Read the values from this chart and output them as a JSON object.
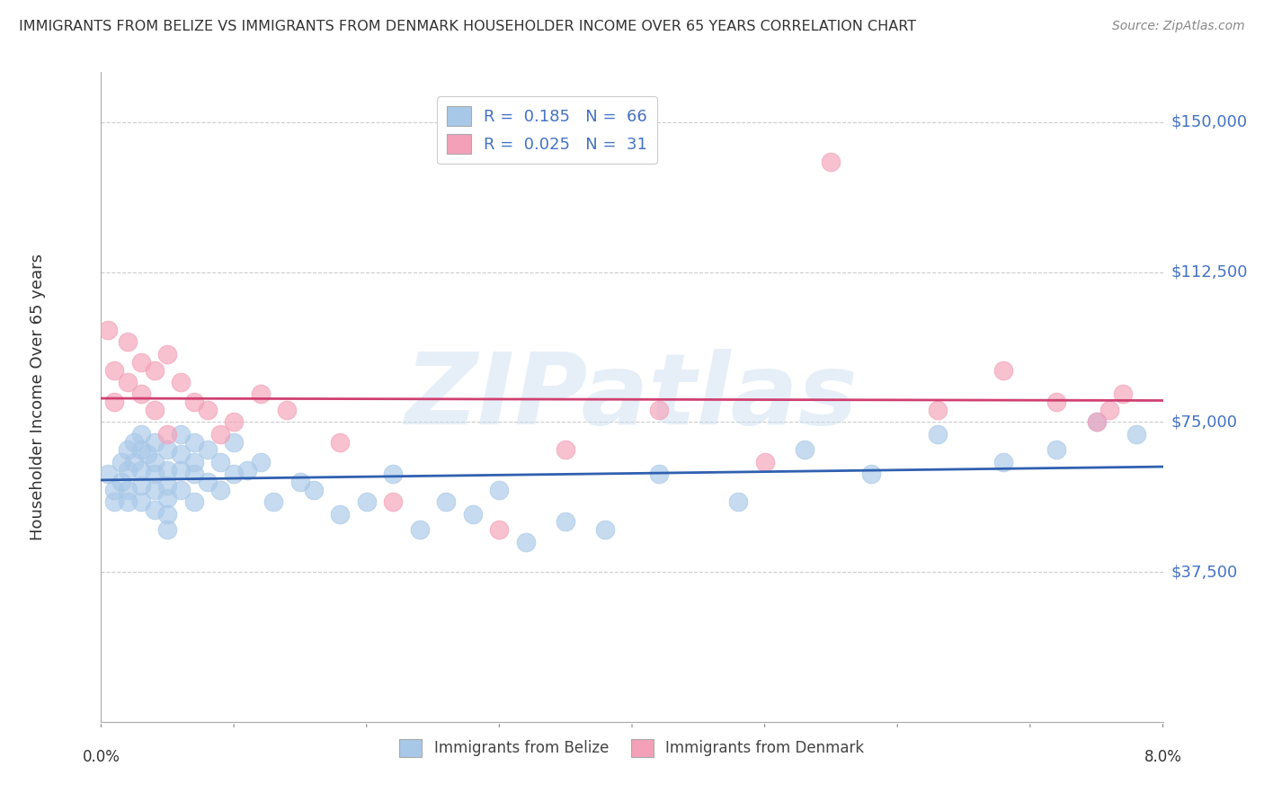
{
  "title": "IMMIGRANTS FROM BELIZE VS IMMIGRANTS FROM DENMARK HOUSEHOLDER INCOME OVER 65 YEARS CORRELATION CHART",
  "source": "Source: ZipAtlas.com",
  "ylabel": "Householder Income Over 65 years",
  "watermark": "ZIPatlas",
  "xlim": [
    0.0,
    0.08
  ],
  "ylim": [
    0,
    162500
  ],
  "yticks": [
    0,
    37500,
    75000,
    112500,
    150000
  ],
  "ytick_labels": [
    "",
    "$37,500",
    "$75,000",
    "$112,500",
    "$150,000"
  ],
  "xtick_positions": [
    0.0,
    0.01,
    0.02,
    0.03,
    0.04,
    0.05,
    0.06,
    0.07,
    0.08
  ],
  "belize_R": 0.185,
  "belize_N": 66,
  "denmark_R": 0.025,
  "denmark_N": 31,
  "belize_color": "#a8c8e8",
  "denmark_color": "#f4a0b8",
  "belize_line_color": "#3060b0",
  "denmark_line_color": "#d04070",
  "background_color": "#ffffff",
  "grid_color": "#cccccc",
  "title_color": "#333333",
  "axis_color": "#4472c4",
  "belize_x": [
    0.0005,
    0.001,
    0.001,
    0.0015,
    0.0015,
    0.002,
    0.002,
    0.002,
    0.002,
    0.0025,
    0.0025,
    0.003,
    0.003,
    0.003,
    0.003,
    0.003,
    0.0035,
    0.004,
    0.004,
    0.004,
    0.004,
    0.004,
    0.005,
    0.005,
    0.005,
    0.005,
    0.005,
    0.005,
    0.006,
    0.006,
    0.006,
    0.006,
    0.007,
    0.007,
    0.007,
    0.007,
    0.008,
    0.008,
    0.009,
    0.009,
    0.01,
    0.01,
    0.011,
    0.012,
    0.013,
    0.015,
    0.016,
    0.018,
    0.02,
    0.022,
    0.024,
    0.026,
    0.028,
    0.03,
    0.032,
    0.035,
    0.038,
    0.042,
    0.048,
    0.053,
    0.058,
    0.063,
    0.068,
    0.072,
    0.075,
    0.078
  ],
  "belize_y": [
    62000,
    55000,
    58000,
    65000,
    60000,
    68000,
    63000,
    58000,
    55000,
    70000,
    65000,
    72000,
    68000,
    63000,
    59000,
    55000,
    67000,
    70000,
    65000,
    62000,
    58000,
    53000,
    68000,
    63000,
    59000,
    56000,
    52000,
    48000,
    72000,
    67000,
    63000,
    58000,
    70000,
    65000,
    62000,
    55000,
    68000,
    60000,
    65000,
    58000,
    70000,
    62000,
    63000,
    65000,
    55000,
    60000,
    58000,
    52000,
    55000,
    62000,
    48000,
    55000,
    52000,
    58000,
    45000,
    50000,
    48000,
    62000,
    55000,
    68000,
    62000,
    72000,
    65000,
    68000,
    75000,
    72000
  ],
  "denmark_x": [
    0.0005,
    0.001,
    0.001,
    0.002,
    0.002,
    0.003,
    0.003,
    0.004,
    0.004,
    0.005,
    0.005,
    0.006,
    0.007,
    0.008,
    0.009,
    0.01,
    0.012,
    0.014,
    0.018,
    0.022,
    0.03,
    0.035,
    0.042,
    0.05,
    0.055,
    0.063,
    0.068,
    0.072,
    0.075,
    0.076,
    0.077
  ],
  "denmark_y": [
    98000,
    88000,
    80000,
    95000,
    85000,
    90000,
    82000,
    88000,
    78000,
    92000,
    72000,
    85000,
    80000,
    78000,
    72000,
    75000,
    82000,
    78000,
    70000,
    55000,
    48000,
    68000,
    78000,
    65000,
    140000,
    78000,
    88000,
    80000,
    75000,
    78000,
    82000
  ]
}
